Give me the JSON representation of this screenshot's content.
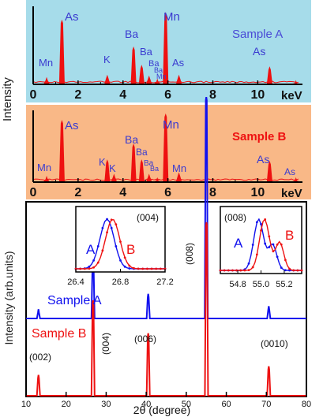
{
  "chart_data": [
    {
      "type": "bar",
      "panel": "EDS spectrum",
      "legend_label": "Sample A",
      "legend_color": "#4a4ad6",
      "background_color": "#a6dcea",
      "line_color": "#ee1111",
      "xlabel": "keV",
      "ylabel": "Intensity",
      "xlim": [
        0,
        11.5
      ],
      "ylim": [
        0,
        1
      ],
      "xticks": [
        "0",
        "2",
        "4",
        "6",
        "8",
        "10"
      ],
      "grid": false,
      "peaks": [
        {
          "x": 0.6,
          "y": 0.08,
          "label": "Mn"
        },
        {
          "x": 1.28,
          "y": 0.83,
          "label": "As"
        },
        {
          "x": 3.3,
          "y": 0.11,
          "label": "K"
        },
        {
          "x": 4.47,
          "y": 0.48,
          "label": "Ba"
        },
        {
          "x": 4.83,
          "y": 0.24,
          "label": "Ba"
        },
        {
          "x": 5.16,
          "y": 0.1,
          "label": "Ba"
        },
        {
          "x": 5.53,
          "y": 0.06,
          "label": "Ba"
        },
        {
          "x": 5.9,
          "y": 0.93,
          "label": "Mn"
        },
        {
          "x": 6.49,
          "y": 0.11,
          "label": "Mn"
        },
        {
          "x": 10.53,
          "y": 0.22,
          "label": "As"
        },
        {
          "x": 11.7,
          "y": 0.04,
          "label": "As"
        }
      ]
    },
    {
      "type": "bar",
      "panel": "EDS spectrum",
      "legend_label": "Sample B",
      "legend_color": "#ee1111",
      "background_color": "#f9b887",
      "line_color": "#ee1111",
      "xlabel": "keV",
      "ylabel": "",
      "xlim": [
        0,
        11.5
      ],
      "ylim": [
        0,
        1
      ],
      "xticks": [
        "0",
        "2",
        "4",
        "6",
        "8",
        "10"
      ],
      "grid": false,
      "peaks": [
        {
          "x": 0.6,
          "y": 0.07,
          "label": "Mn"
        },
        {
          "x": 1.28,
          "y": 0.85,
          "label": "As"
        },
        {
          "x": 3.3,
          "y": 0.3,
          "label": "K"
        },
        {
          "x": 3.6,
          "y": 0.1,
          "label": "K"
        },
        {
          "x": 4.47,
          "y": 0.52,
          "label": "Ba"
        },
        {
          "x": 4.83,
          "y": 0.3,
          "label": "Ba"
        },
        {
          "x": 5.16,
          "y": 0.1,
          "label": "Ba"
        },
        {
          "x": 5.53,
          "y": 0.05,
          "label": "Ba"
        },
        {
          "x": 5.9,
          "y": 0.94,
          "label": "Mn"
        },
        {
          "x": 6.49,
          "y": 0.12,
          "label": "Mn"
        },
        {
          "x": 10.53,
          "y": 0.28,
          "label": "As"
        },
        {
          "x": 11.7,
          "y": 0.05,
          "label": "As"
        }
      ]
    },
    {
      "type": "line",
      "panel": "XRD",
      "xlabel": "2θ (degree)",
      "ylabel": "Intensity (arb.units)",
      "xlim": [
        10,
        80
      ],
      "xticks": [
        "10",
        "20",
        "30",
        "40",
        "50",
        "60",
        "70",
        "80"
      ],
      "grid": false,
      "series": [
        {
          "name": "Sample A",
          "color": "#1111ee",
          "peaks": [
            {
              "x": 13.1,
              "h": 0.03
            },
            {
              "x": 26.72,
              "h": 0.2
            },
            {
              "x": 40.5,
              "h": 0.08
            },
            {
              "x": 55.0,
              "h": 0.72
            },
            {
              "x": 70.6,
              "h": 0.04
            }
          ]
        },
        {
          "name": "Sample B",
          "color": "#ee1111",
          "peaks": [
            {
              "x": 13.1,
              "h": 0.12
            },
            {
              "x": 26.72,
              "h": 0.55
            },
            {
              "x": 40.5,
              "h": 0.36
            },
            {
              "x": 55.05,
              "h": 1.0
            },
            {
              "x": 70.6,
              "h": 0.17
            }
          ]
        }
      ],
      "annotations": [
        "(002)",
        "(004)",
        "(006)",
        "(008)",
        "(0010)"
      ],
      "insets": [
        {
          "label": "(004)",
          "xlim": [
            26.4,
            27.2
          ],
          "xticks": [
            "26.4",
            "26.8",
            "27.2"
          ],
          "series": [
            {
              "name": "A",
              "center": 26.68,
              "width": 0.09,
              "color": "#1111ee"
            },
            {
              "name": "B",
              "center": 26.73,
              "width": 0.09,
              "color": "#ee1111"
            }
          ]
        },
        {
          "label": "(008)",
          "xlim": [
            54.65,
            55.35
          ],
          "xticks": [
            "54.8",
            "55.0",
            "55.2"
          ],
          "series": [
            {
              "name": "A",
              "center": 54.98,
              "width": 0.06,
              "color": "#1111ee"
            },
            {
              "name": "B",
              "center": 55.03,
              "width": 0.06,
              "color": "#ee1111"
            }
          ]
        }
      ]
    }
  ]
}
